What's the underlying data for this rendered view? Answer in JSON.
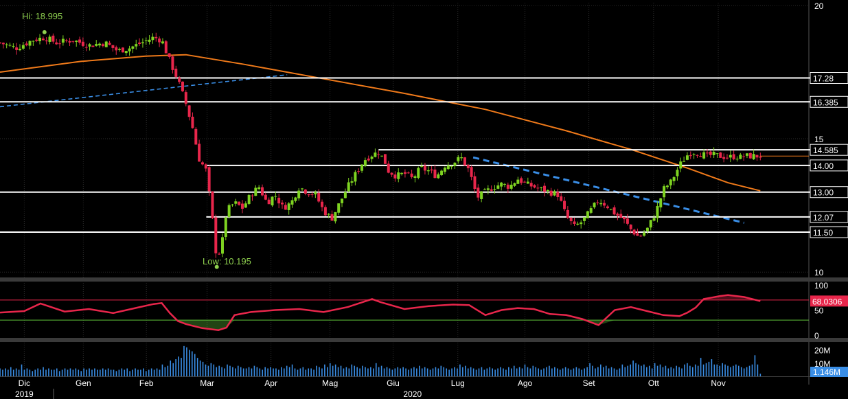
{
  "colors": {
    "background": "#000000",
    "grid": "#2b2b2b",
    "up": "#7ed321",
    "down": "#e8264b",
    "ma": "#f07a1a",
    "trend": "#3a8ee6",
    "level": "#ffffff",
    "annotation": "#8fd14f",
    "rsi": "#e8264b",
    "rsi_upper": "#e8264b",
    "rsi_lower": "#5fc43a",
    "volume": "#3a8ee6",
    "axis_text": "#ffffff"
  },
  "chart_data": [
    {
      "type": "candlestick",
      "panel": "price",
      "ylim": [
        9.8,
        20.1
      ],
      "y_ticks": [
        "20",
        "15",
        "10"
      ],
      "annotations": {
        "high": "Hi: 18.995",
        "low": "Low: 10.195"
      },
      "high_point": {
        "x": 0.055,
        "y": 18.995
      },
      "low_point": {
        "x": 0.268,
        "y": 10.195
      },
      "levels": [
        {
          "label": "17.28",
          "value": 17.28,
          "x_start": 0.0
        },
        {
          "label": "16.385",
          "value": 16.385,
          "x_start": 0.0
        },
        {
          "label": "14.585",
          "value": 14.585,
          "x_start": 0.468
        },
        {
          "label": "14.00",
          "value": 14.0,
          "x_start": 0.255
        },
        {
          "label": "13.00",
          "value": 13.0,
          "x_start": 0.0
        },
        {
          "label": "12.07",
          "value": 12.07,
          "x_start": 0.255
        },
        {
          "label": "11.50",
          "value": 11.5,
          "x_start": 0.0
        }
      ],
      "last_price": 14.35,
      "moving_average": {
        "x": [
          0.0,
          0.1,
          0.18,
          0.23,
          0.3,
          0.4,
          0.5,
          0.6,
          0.7,
          0.78,
          0.85,
          0.9,
          0.94
        ],
        "y": [
          17.5,
          17.9,
          18.1,
          18.15,
          17.8,
          17.25,
          16.7,
          16.1,
          15.3,
          14.6,
          13.9,
          13.35,
          13.05
        ]
      },
      "trendlines": [
        {
          "style": "dashed-thin",
          "x": [
            0.0,
            0.355
          ],
          "y": [
            16.2,
            17.4
          ]
        },
        {
          "style": "dashed-bold",
          "x": [
            0.585,
            0.92
          ],
          "y": [
            14.3,
            11.85
          ]
        }
      ],
      "close_series": {
        "x": [
          0.0,
          0.02,
          0.04,
          0.055,
          0.07,
          0.09,
          0.11,
          0.13,
          0.145,
          0.16,
          0.175,
          0.19,
          0.2,
          0.21,
          0.22,
          0.23,
          0.24,
          0.245,
          0.255,
          0.26,
          0.265,
          0.268,
          0.275,
          0.28,
          0.29,
          0.3,
          0.31,
          0.32,
          0.33,
          0.34,
          0.35,
          0.36,
          0.37,
          0.38,
          0.39,
          0.4,
          0.41,
          0.42,
          0.43,
          0.44,
          0.45,
          0.46,
          0.468,
          0.475,
          0.48,
          0.49,
          0.5,
          0.51,
          0.52,
          0.53,
          0.54,
          0.55,
          0.56,
          0.57,
          0.58,
          0.59,
          0.6,
          0.61,
          0.62,
          0.63,
          0.64,
          0.65,
          0.66,
          0.67,
          0.68,
          0.69,
          0.7,
          0.71,
          0.72,
          0.73,
          0.74,
          0.75,
          0.76,
          0.765,
          0.77,
          0.78,
          0.79,
          0.8,
          0.81,
          0.815,
          0.82,
          0.83,
          0.835,
          0.84,
          0.845,
          0.85,
          0.855,
          0.86,
          0.87,
          0.875,
          0.88,
          0.89,
          0.9,
          0.91,
          0.915,
          0.92,
          0.925,
          0.93,
          0.94
        ],
        "y": [
          18.6,
          18.4,
          18.7,
          18.8,
          18.6,
          18.7,
          18.5,
          18.6,
          18.3,
          18.4,
          18.6,
          18.8,
          18.7,
          17.9,
          17.2,
          16.3,
          15.2,
          14.3,
          13.8,
          12.6,
          11.4,
          10.4,
          11.2,
          12.3,
          12.6,
          12.4,
          12.9,
          13.2,
          12.6,
          12.9,
          12.4,
          12.6,
          13.2,
          13.0,
          12.9,
          12.3,
          12.0,
          12.6,
          13.2,
          13.7,
          14.2,
          14.4,
          14.5,
          14.2,
          13.8,
          13.6,
          13.7,
          13.5,
          13.9,
          13.8,
          13.6,
          14.0,
          14.1,
          14.3,
          13.8,
          12.8,
          13.0,
          13.2,
          13.3,
          13.2,
          13.5,
          13.3,
          13.2,
          13.1,
          13.0,
          12.9,
          12.1,
          11.7,
          11.9,
          12.3,
          12.7,
          12.5,
          12.2,
          12.1,
          12.0,
          11.6,
          11.3,
          11.6,
          12.2,
          12.6,
          13.1,
          13.4,
          13.7,
          14.0,
          14.2,
          14.4,
          14.5,
          14.5,
          14.4,
          14.35,
          14.4,
          14.35,
          14.3,
          14.35,
          14.3,
          14.35,
          14.35,
          14.35,
          14.35
        ]
      }
    },
    {
      "type": "line",
      "panel": "rsi",
      "ylim": [
        0,
        100
      ],
      "y_ticks": [
        "100",
        "50",
        "0"
      ],
      "upper": 70,
      "lower": 30,
      "last_value_label": "68.0306",
      "x": [
        0.0,
        0.03,
        0.05,
        0.08,
        0.11,
        0.14,
        0.17,
        0.19,
        0.2,
        0.21,
        0.22,
        0.23,
        0.24,
        0.25,
        0.26,
        0.27,
        0.28,
        0.29,
        0.31,
        0.34,
        0.37,
        0.4,
        0.43,
        0.46,
        0.47,
        0.5,
        0.53,
        0.56,
        0.58,
        0.6,
        0.62,
        0.64,
        0.66,
        0.68,
        0.7,
        0.72,
        0.74,
        0.76,
        0.78,
        0.8,
        0.82,
        0.84,
        0.85,
        0.86,
        0.87,
        0.88,
        0.89,
        0.9,
        0.92,
        0.94
      ],
      "y": [
        45,
        48,
        63,
        47,
        52,
        44,
        55,
        62,
        64,
        44,
        28,
        22,
        18,
        14,
        12,
        10,
        15,
        40,
        46,
        50,
        52,
        46,
        56,
        72,
        66,
        52,
        58,
        61,
        60,
        40,
        50,
        54,
        52,
        42,
        40,
        32,
        20,
        50,
        56,
        48,
        40,
        38,
        45,
        55,
        72,
        75,
        78,
        80,
        76,
        68
      ]
    },
    {
      "type": "bar",
      "panel": "volume",
      "y_ticks": [
        "20M",
        "10M"
      ],
      "last_value_label": "1.146M",
      "ylim": [
        0,
        25
      ],
      "values": [
        6,
        5,
        6,
        5,
        7,
        5,
        6,
        5,
        9,
        5,
        6,
        5,
        4,
        5,
        6,
        5,
        7,
        5,
        6,
        5,
        5,
        6,
        4,
        5,
        6,
        5,
        6,
        5,
        6,
        5,
        4,
        6,
        5,
        6,
        5,
        6,
        5,
        5,
        6,
        5,
        6,
        5,
        5,
        4,
        5,
        6,
        5,
        6,
        4,
        5,
        6,
        5,
        5,
        6,
        4,
        5,
        6,
        5,
        6,
        5,
        9,
        7,
        8,
        12,
        10,
        13,
        15,
        14,
        23,
        22,
        20,
        19,
        17,
        14,
        12,
        11,
        9,
        8,
        10,
        9,
        7,
        8,
        7,
        6,
        9,
        8,
        7,
        6,
        8,
        7,
        6,
        6,
        7,
        6,
        8,
        7,
        6,
        5,
        7,
        6,
        7,
        6,
        6,
        5,
        7,
        6,
        8,
        7,
        9,
        6,
        5,
        6,
        7,
        5,
        6,
        6,
        5,
        8,
        7,
        6,
        9,
        7,
        10,
        8,
        9,
        7,
        8,
        6,
        7,
        6,
        9,
        8,
        7,
        6,
        8,
        7,
        6,
        7,
        6,
        10,
        7,
        8,
        6,
        7,
        6,
        5,
        6,
        7,
        6,
        7,
        6,
        5,
        6,
        7,
        6,
        8,
        6,
        7,
        6,
        5,
        6,
        7,
        6,
        8,
        7,
        6,
        5,
        6,
        7,
        6,
        9,
        7,
        8,
        6,
        7,
        6,
        5,
        6,
        7,
        5,
        6,
        7,
        6,
        5,
        6,
        7,
        6,
        5,
        7,
        6,
        8,
        6,
        7,
        6,
        9,
        7,
        6,
        8,
        7,
        6,
        5,
        6,
        7,
        8,
        6,
        7,
        6,
        5,
        6,
        7,
        6,
        5,
        6,
        7,
        6,
        5,
        6,
        7,
        10,
        8,
        6,
        7,
        9,
        7,
        8,
        6,
        7,
        6,
        5,
        6,
        9,
        7,
        8,
        9,
        12,
        10,
        9,
        8,
        9,
        7,
        8,
        6,
        10,
        8,
        9,
        7,
        8,
        6,
        7,
        6,
        8,
        7,
        6,
        9,
        10,
        8,
        7,
        9,
        8,
        14,
        9,
        10,
        11,
        13,
        9,
        9,
        8,
        10,
        9,
        8,
        7,
        8,
        9,
        8,
        7,
        6,
        7,
        8,
        9,
        16,
        9,
        2
      ]
    }
  ],
  "x_axis": {
    "months": [
      {
        "label": "Dic",
        "x": 0.03
      },
      {
        "label": "Gen",
        "x": 0.103
      },
      {
        "label": "Feb",
        "x": 0.181
      },
      {
        "label": "Mar",
        "x": 0.256
      },
      {
        "label": "Apr",
        "x": 0.335
      },
      {
        "label": "Mag",
        "x": 0.408
      },
      {
        "label": "Giu",
        "x": 0.486
      },
      {
        "label": "Lug",
        "x": 0.566
      },
      {
        "label": "Ago",
        "x": 0.649
      },
      {
        "label": "Set",
        "x": 0.728
      },
      {
        "label": "Ott",
        "x": 0.808
      },
      {
        "label": "Nov",
        "x": 0.888
      }
    ],
    "years": [
      {
        "label": "2019",
        "x": 0.03
      },
      {
        "label": "2020",
        "x": 0.51
      }
    ]
  }
}
